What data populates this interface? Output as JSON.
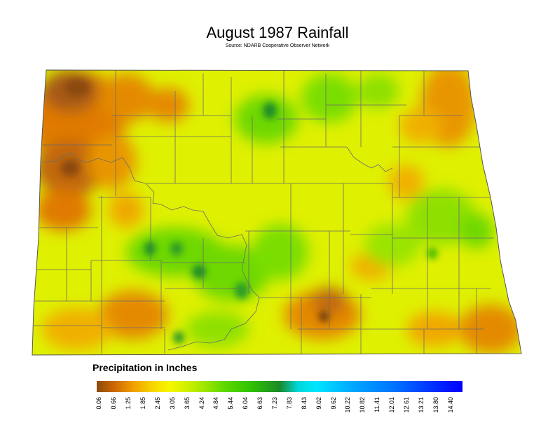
{
  "title": "August 1987 Rainfall",
  "source": "Source: NDARB Cooperative Observer Network",
  "legend": {
    "title": "Precipitation in Inches",
    "ticks": [
      "0.06",
      "0.66",
      "1.25",
      "1.85",
      "2.45",
      "3.05",
      "3.65",
      "4.24",
      "4.84",
      "5.44",
      "6.04",
      "6.63",
      "7.23",
      "7.83",
      "8.43",
      "9.02",
      "9.62",
      "10.22",
      "10.82",
      "11.41",
      "12.01",
      "12.61",
      "13.21",
      "13.80",
      "14.40"
    ],
    "colors": [
      "#8b4a0f",
      "#e07a00",
      "#f2a800",
      "#f7d400",
      "#f7f700",
      "#ccf000",
      "#98e600",
      "#5ed800",
      "#2fc400",
      "#1a9a2a",
      "#00c8c8",
      "#00e6ff",
      "#00b4ff",
      "#0082ff",
      "#0050ff",
      "#0000ff"
    ]
  },
  "colors": {
    "county_line": "#6b6b6b",
    "state_outline": "#555555"
  }
}
